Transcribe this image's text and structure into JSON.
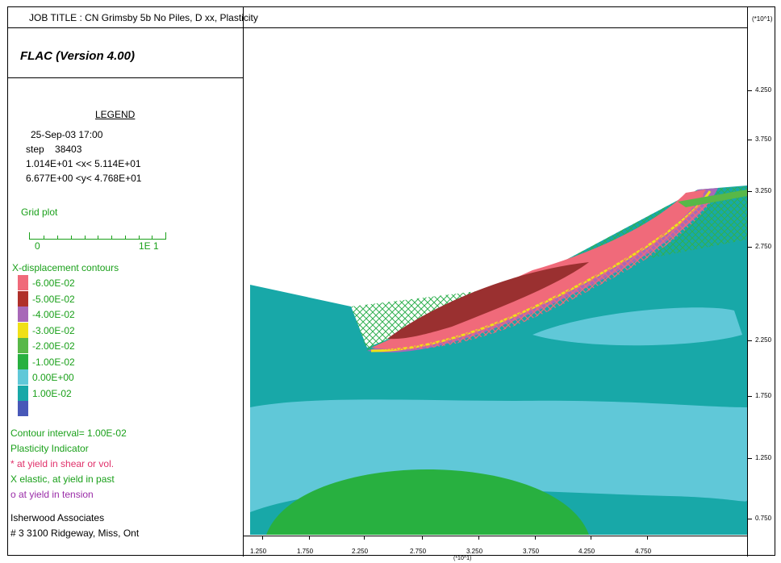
{
  "title": "JOB TITLE : CN Grimsby 5b No Piles, D xx, Plasticity",
  "y_unit": "(*10^1)",
  "x_unit": "(*10^1)",
  "program": "FLAC (Version 4.00)",
  "legend": {
    "heading": "LEGEND",
    "date": "25-Sep-03 17:00",
    "step": "step    38403",
    "x_range": "1.014E+01 <x< 5.114E+01",
    "y_range": "6.677E+00 <y< 4.768E+01",
    "grid_plot": "Grid plot",
    "scale_start": "0",
    "scale_end": "1E 1",
    "contours_title": "X-displacement contours",
    "contours": [
      {
        "label": "-6.00E-02",
        "color": "#f06a7a"
      },
      {
        "label": "-5.00E-02",
        "color": "#b0302a"
      },
      {
        "label": "-4.00E-02",
        "color": "#a868b8"
      },
      {
        "label": "-3.00E-02",
        "color": "#f0e018"
      },
      {
        "label": "-2.00E-02",
        "color": "#58b848"
      },
      {
        "label": "-1.00E-02",
        "color": "#28b040"
      },
      {
        "label": "0.00E+00",
        "color": "#60c8d8"
      },
      {
        "label": "1.00E-02",
        "color": "#18a8a8"
      },
      {
        "label": "",
        "color": "#4858b8"
      }
    ],
    "contour_interval": "Contour interval=  1.00E-02",
    "plasticity_title": "Plasticity Indicator",
    "plast_shear": "* at yield in shear or vol.",
    "plast_elastic": "X elastic, at yield in past",
    "plast_tension": "o at yield in tension",
    "company": "Isherwood Associates",
    "address": "# 3 3100 Ridgeway, Miss, Ont"
  },
  "y_ticks": [
    "4.250",
    "3.750",
    "3.250",
    "2.750",
    "2.250",
    "1.750",
    "1.250",
    "0.750"
  ],
  "x_ticks": [
    "1.250",
    "1.750",
    "2.250",
    "2.750",
    "3.250",
    "3.750",
    "4.250",
    "4.750"
  ],
  "colors": {
    "teal": "#18a8a8",
    "light_blue": "#60c8d8",
    "green": "#28b040",
    "mesh_green": "#30b050",
    "pink": "#f06a7a",
    "dark_red": "#9a3030",
    "purple": "#a868b8",
    "yellow": "#f0e018",
    "legend_text": "#1aa01a"
  }
}
